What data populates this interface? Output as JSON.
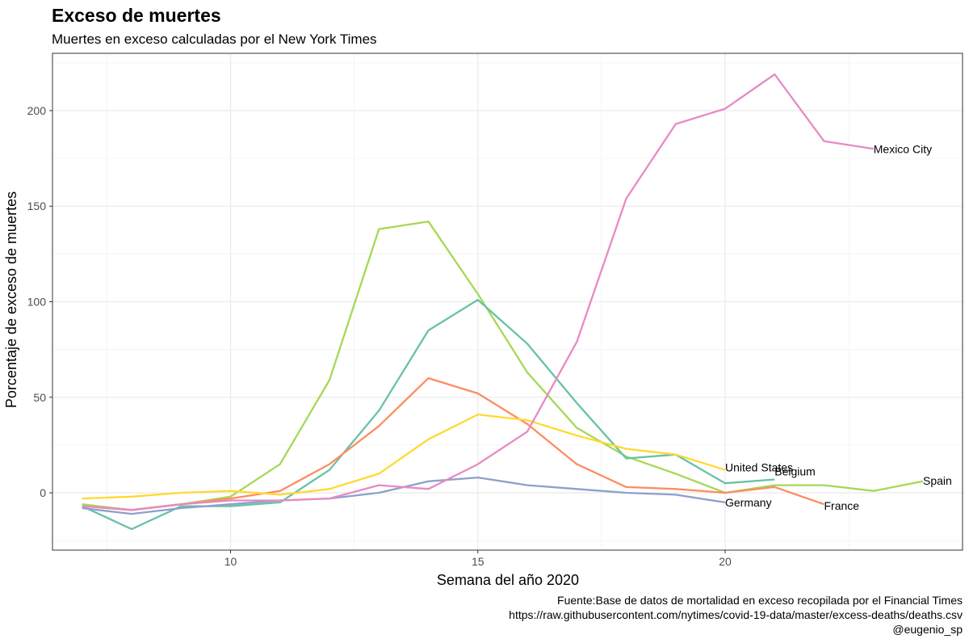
{
  "chart_data": {
    "type": "line",
    "title": "Exceso de muertes",
    "subtitle": "Muertes en exceso calculadas por el New York Times",
    "xlabel": "Semana del año 2020",
    "ylabel": "Porcentaje de exceso de muertes",
    "xlim": [
      6.4,
      24.8
    ],
    "ylim": [
      -30,
      230
    ],
    "xticks": [
      10,
      15,
      20
    ],
    "yticks": [
      0,
      50,
      100,
      150,
      200
    ],
    "grid": true,
    "legend": "none (direct end-of-line labels)",
    "caption": [
      "Fuente:Base de datos de mortalidad en exceso recopilada por el Financial Times",
      "https://raw.githubusercontent.com/nytimes/covid-19-data/master/excess-deaths/deaths.csv",
      "@eugenio_sp"
    ],
    "series": [
      {
        "name": "Spain",
        "color": "#a6d854",
        "x": [
          7,
          8,
          9,
          10,
          11,
          12,
          13,
          14,
          15,
          16,
          17,
          18,
          19,
          20,
          21,
          22,
          23,
          24
        ],
        "y": [
          -6,
          -9,
          -6,
          -2,
          15,
          59,
          138,
          142,
          104,
          63,
          34,
          19,
          10,
          0,
          4,
          4,
          1,
          6
        ]
      },
      {
        "name": "Belgium",
        "color": "#66c2a5",
        "x": [
          7,
          8,
          9,
          10,
          11,
          12,
          13,
          14,
          15,
          16,
          17,
          18,
          19,
          20,
          21
        ],
        "y": [
          -7,
          -19,
          -7,
          -7,
          -5,
          12,
          43,
          85,
          101,
          78,
          47,
          18,
          20,
          5,
          7
        ]
      },
      {
        "name": "France",
        "color": "#fc8d62",
        "x": [
          7,
          8,
          9,
          10,
          11,
          12,
          13,
          14,
          15,
          16,
          17,
          18,
          19,
          20,
          21,
          22
        ],
        "y": [
          -7,
          -9,
          -6,
          -3,
          1,
          15,
          35,
          60,
          52,
          36,
          15,
          3,
          2,
          0,
          3,
          -6
        ]
      },
      {
        "name": "United States",
        "color": "#ffd92f",
        "x": [
          7,
          8,
          9,
          10,
          11,
          12,
          13,
          14,
          15,
          16,
          17,
          18,
          19,
          20
        ],
        "y": [
          -3,
          -2,
          0,
          1,
          -1,
          2,
          10,
          28,
          41,
          38,
          30,
          23,
          20,
          12
        ]
      },
      {
        "name": "Germany",
        "color": "#8da0cb",
        "x": [
          7,
          8,
          9,
          10,
          11,
          12,
          13,
          14,
          15,
          16,
          17,
          18,
          19,
          20
        ],
        "y": [
          -8,
          -11,
          -8,
          -6,
          -4,
          -3,
          0,
          6,
          8,
          4,
          2,
          0,
          -1,
          -5
        ]
      },
      {
        "name": "Mexico City",
        "color": "#e78ac3",
        "x": [
          7,
          8,
          9,
          10,
          11,
          12,
          13,
          14,
          15,
          16,
          17,
          18,
          19,
          20,
          21,
          22,
          23
        ],
        "y": [
          -7,
          -9,
          -6,
          -4,
          -4,
          -3,
          4,
          2,
          15,
          32,
          79,
          154,
          193,
          201,
          219,
          184,
          180
        ]
      }
    ]
  }
}
